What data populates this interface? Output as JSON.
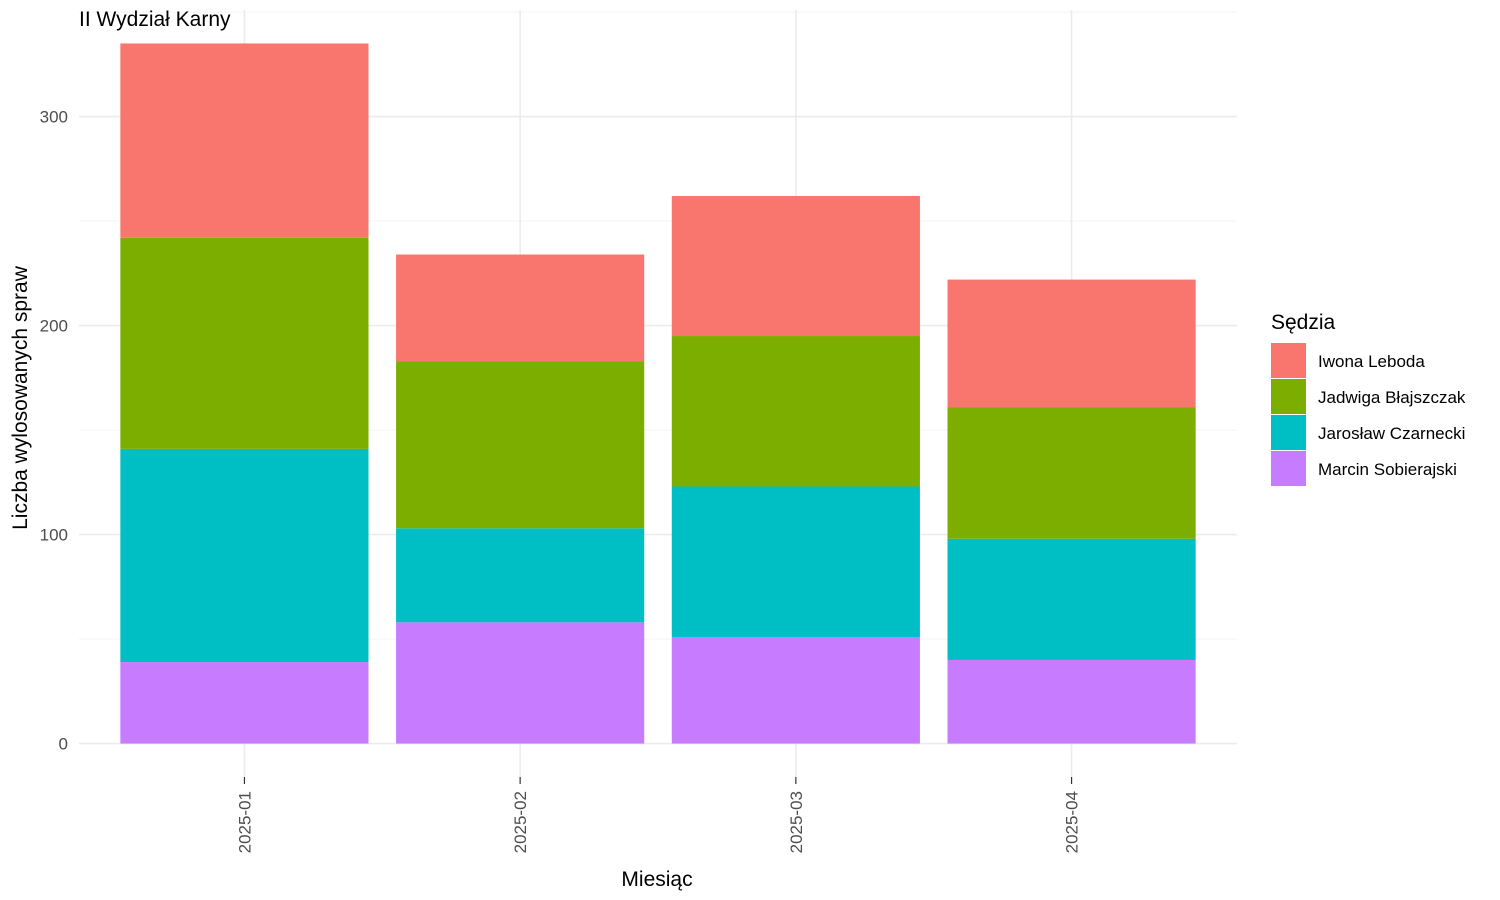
{
  "chart_data": {
    "type": "bar",
    "stacked": true,
    "title": "II Wydział Karny",
    "xlabel": "Miesiąc",
    "ylabel": "Liczba wylosowanych spraw",
    "categories": [
      "2025-01",
      "2025-02",
      "2025-03",
      "2025-04"
    ],
    "yticks": [
      0,
      100,
      200,
      300
    ],
    "ylim": [
      -16,
      351
    ],
    "grid": true,
    "legend": {
      "title": "Sędzia",
      "placement": "right"
    },
    "series": [
      {
        "name": "Iwona Leboda",
        "color": "#F8766D",
        "values": [
          93,
          51,
          67,
          61
        ]
      },
      {
        "name": "Jadwiga Błajszczak",
        "color": "#7CAE00",
        "values": [
          101,
          80,
          72,
          63
        ]
      },
      {
        "name": "Jarosław Czarnecki",
        "color": "#00BFC4",
        "values": [
          102,
          45,
          72,
          58
        ]
      },
      {
        "name": "Marcin Sobierajski",
        "color": "#C77CFF",
        "values": [
          39,
          58,
          51,
          40
        ]
      }
    ]
  }
}
